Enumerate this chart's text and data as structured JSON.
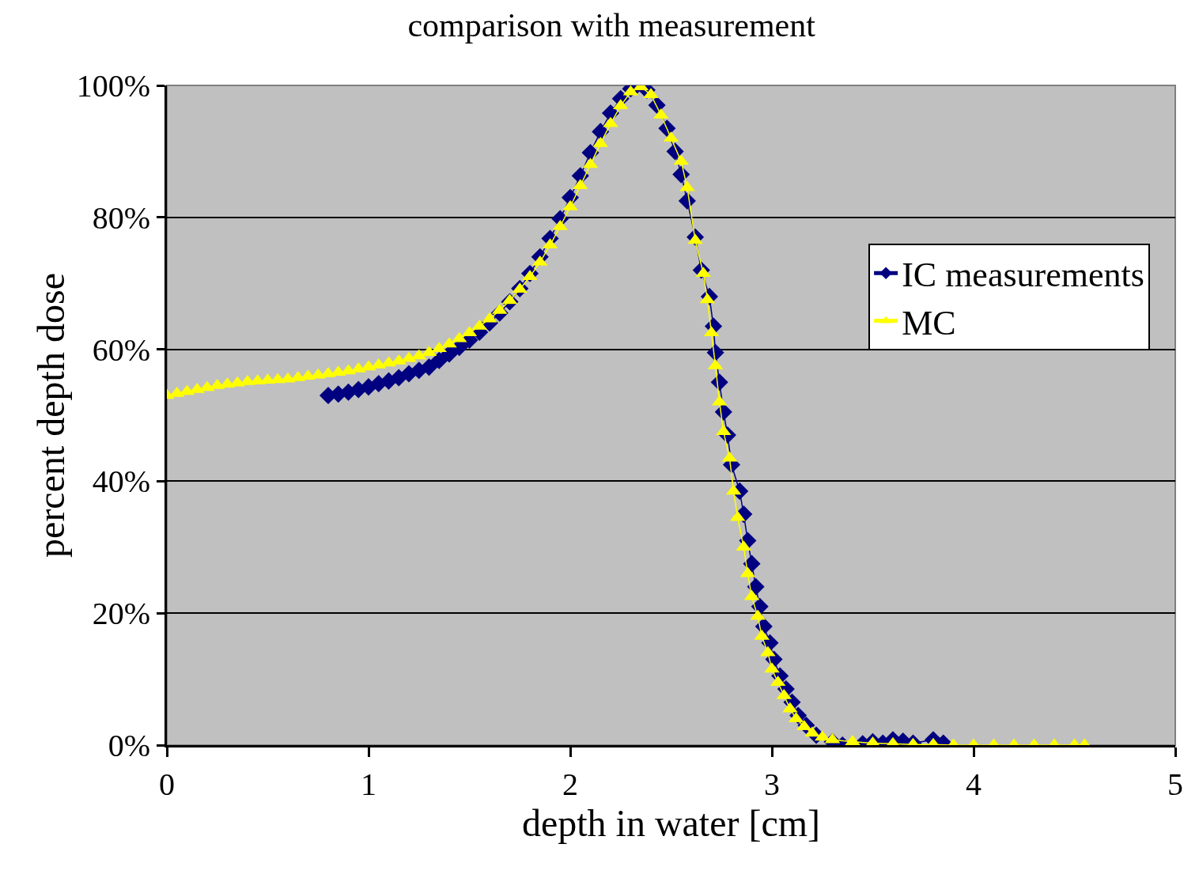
{
  "chart_data": {
    "type": "line",
    "title": "comparison with measurement",
    "xlabel": "depth in water [cm]",
    "ylabel": "percent depth dose",
    "xlim": [
      0,
      5
    ],
    "xticks": [
      0,
      1,
      2,
      3,
      4,
      5
    ],
    "ylim": [
      0,
      100
    ],
    "yticks": [
      {
        "value": 0,
        "label": "0%"
      },
      {
        "value": 20,
        "label": "20%"
      },
      {
        "value": 40,
        "label": "40%"
      },
      {
        "value": 60,
        "label": "60%"
      },
      {
        "value": 80,
        "label": "80%"
      },
      {
        "value": 100,
        "label": "100%"
      }
    ],
    "grid": "y",
    "legend": "top right",
    "line_style": "solid",
    "series": [
      {
        "name": "IC measurements",
        "color": "#000080",
        "marker": "diamond",
        "x": [
          0.8,
          0.85,
          0.9,
          0.95,
          1.0,
          1.05,
          1.1,
          1.15,
          1.2,
          1.25,
          1.3,
          1.35,
          1.4,
          1.45,
          1.5,
          1.55,
          1.6,
          1.65,
          1.7,
          1.75,
          1.8,
          1.85,
          1.9,
          1.95,
          2.0,
          2.05,
          2.1,
          2.15,
          2.2,
          2.25,
          2.3,
          2.33,
          2.38,
          2.43,
          2.48,
          2.52,
          2.55,
          2.58,
          2.62,
          2.65,
          2.69,
          2.71,
          2.72,
          2.74,
          2.76,
          2.78,
          2.8,
          2.84,
          2.86,
          2.88,
          2.9,
          2.92,
          2.94,
          2.96,
          2.99,
          3.01,
          3.04,
          3.07,
          3.1,
          3.13,
          3.17,
          3.22,
          3.3,
          3.35,
          3.4,
          3.45,
          3.5,
          3.55,
          3.6,
          3.65,
          3.7,
          3.8,
          3.85
        ],
        "values": [
          53,
          53.2,
          53.5,
          53.9,
          54.3,
          54.8,
          55.2,
          55.7,
          56.3,
          56.8,
          57.3,
          58.3,
          59.3,
          60.3,
          61.4,
          62.6,
          64,
          65.5,
          67.2,
          69.2,
          71.5,
          74,
          76.8,
          79.8,
          83,
          86.3,
          89.8,
          93,
          95.8,
          98,
          99.5,
          100,
          99.3,
          97,
          93.5,
          90,
          86.5,
          82.5,
          77,
          72,
          68,
          63.5,
          59.5,
          55,
          50.5,
          47,
          42.5,
          38.5,
          35,
          31,
          27.5,
          24,
          21,
          18,
          15.5,
          13,
          10.5,
          8.5,
          6.5,
          4.5,
          3,
          1.5,
          0.5,
          0,
          null,
          0.2,
          0.5,
          0.3,
          0.8,
          0.6,
          0.3,
          0.8,
          0.3
        ]
      },
      {
        "name": "MC",
        "color": "#ffff00",
        "marker": "triangle",
        "x": [
          0,
          0.05,
          0.1,
          0.15,
          0.2,
          0.25,
          0.3,
          0.35,
          0.4,
          0.45,
          0.5,
          0.55,
          0.6,
          0.65,
          0.7,
          0.75,
          0.8,
          0.85,
          0.9,
          0.95,
          1.0,
          1.05,
          1.1,
          1.15,
          1.2,
          1.25,
          1.3,
          1.35,
          1.4,
          1.45,
          1.5,
          1.55,
          1.6,
          1.65,
          1.7,
          1.75,
          1.8,
          1.85,
          1.9,
          1.95,
          2.0,
          2.05,
          2.1,
          2.15,
          2.2,
          2.25,
          2.3,
          2.35,
          2.4,
          2.45,
          2.5,
          2.55,
          2.58,
          2.62,
          2.66,
          2.68,
          2.7,
          2.72,
          2.74,
          2.76,
          2.79,
          2.81,
          2.83,
          2.86,
          2.88,
          2.9,
          2.93,
          2.95,
          2.98,
          3.0,
          3.03,
          3.06,
          3.09,
          3.12,
          3.16,
          3.2,
          3.25,
          3.3,
          3.4,
          3.5,
          3.6,
          3.7,
          3.8,
          3.9,
          4.0,
          4.1,
          4.2,
          4.3,
          4.4,
          4.5,
          4.55
        ],
        "values": [
          53,
          53.3,
          53.6,
          53.9,
          54.2,
          54.5,
          54.7,
          54.9,
          55.1,
          55.2,
          55.3,
          55.4,
          55.5,
          55.7,
          55.9,
          56.1,
          56.3,
          56.5,
          56.7,
          57,
          57.3,
          57.6,
          57.9,
          58.2,
          58.6,
          59,
          59.5,
          60.1,
          60.8,
          61.6,
          62.5,
          63.5,
          64.6,
          65.9,
          67.4,
          69.1,
          71,
          73.2,
          75.8,
          78.6,
          81.6,
          84.8,
          88,
          91.2,
          94.2,
          96.9,
          99,
          99.8,
          98.6,
          95.5,
          92,
          88.5,
          84.5,
          76.5,
          71.5,
          67.5,
          62.5,
          57.5,
          52,
          47.5,
          43.5,
          38.5,
          34.5,
          30,
          26,
          22.5,
          19.5,
          16.5,
          14,
          11.5,
          9.5,
          7.5,
          5.5,
          4,
          2.8,
          1.8,
          1.2,
          0.8,
          0.5,
          0.3,
          0.2,
          0.1,
          0.1,
          0,
          0,
          0,
          0,
          0,
          0,
          0,
          0
        ]
      }
    ]
  }
}
